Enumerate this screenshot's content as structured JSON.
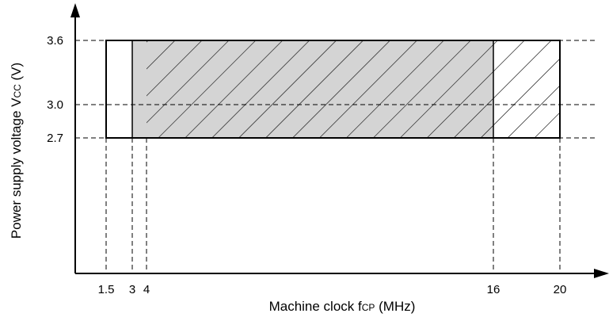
{
  "chart_data": {
    "type": "area",
    "xlabel_main": "Machine clock f",
    "xlabel_sub": "CP",
    "xlabel_unit": " (MHz)",
    "ylabel_main": "Power supply voltage V",
    "ylabel_sub": "CC",
    "ylabel_unit": " (V)",
    "x_ticks": [
      "1.5",
      "3",
      "4",
      "16",
      "20"
    ],
    "y_ticks": [
      "3.6",
      "3.0",
      "2.7"
    ],
    "x_tick_values": [
      1.5,
      3,
      4,
      16,
      20
    ],
    "y_tick_values": [
      3.6,
      3.0,
      2.7
    ],
    "regions": [
      {
        "x": [
          1.5,
          20
        ],
        "y": [
          2.7,
          3.6
        ],
        "style": "outline"
      },
      {
        "x": [
          3,
          16
        ],
        "y": [
          2.7,
          3.6
        ],
        "style": "gray-fill"
      },
      {
        "x": [
          4,
          20
        ],
        "y": [
          2.7,
          3.6
        ],
        "style": "hatched"
      }
    ],
    "grid": "dashed reference lines at ticks"
  }
}
